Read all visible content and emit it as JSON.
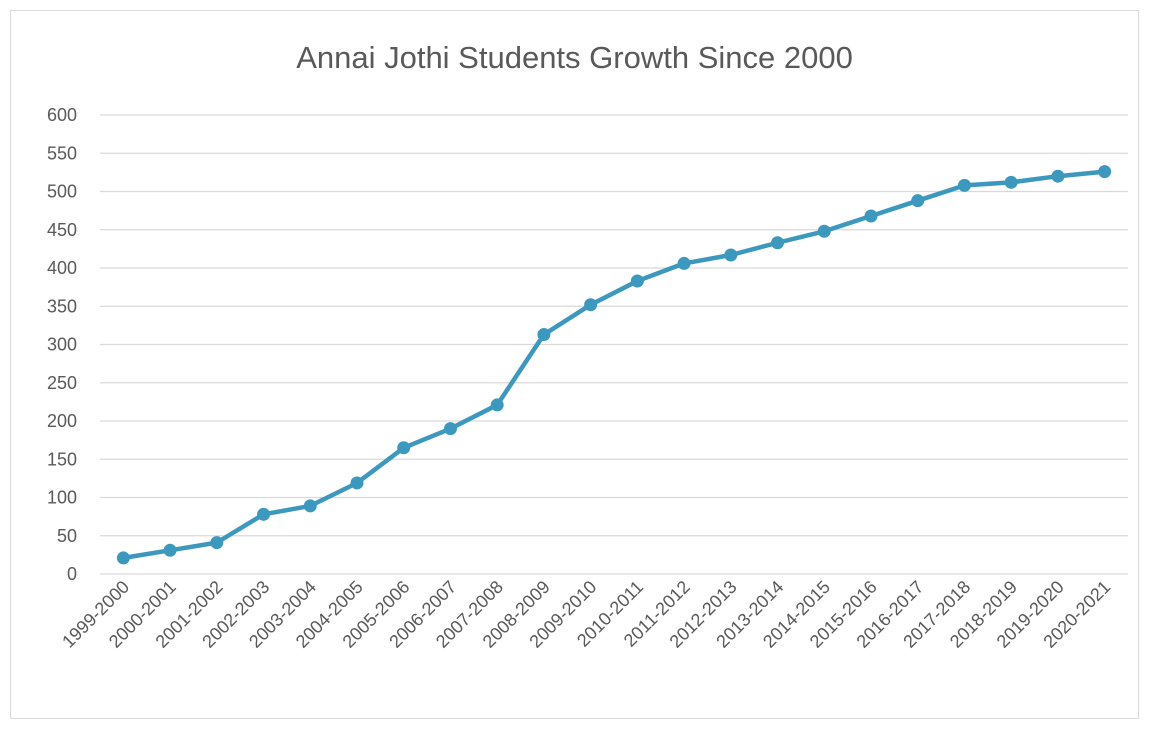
{
  "chart_data": {
    "type": "line",
    "title": "Annai Jothi Students Growth Since 2000",
    "xlabel": "",
    "ylabel": "",
    "ylim": [
      0,
      600
    ],
    "yticks": [
      0,
      50,
      100,
      150,
      200,
      250,
      300,
      350,
      400,
      450,
      500,
      550,
      600
    ],
    "grid": true,
    "legend": "none",
    "color": "#3d98bd",
    "categories": [
      "1999-2000",
      "2000-2001",
      "2001-2002",
      "2002-2003",
      "2003-2004",
      "2004-2005",
      "2005-2006",
      "2006-2007",
      "2007-2008",
      "2008-2009",
      "2009-2010",
      "2010-2011",
      "2011-2012",
      "2012-2013",
      "2013-2014",
      "2014-2015",
      "2015-2016",
      "2016-2017",
      "2017-2018",
      "2018-2019",
      "2019-2020",
      "2020-2021"
    ],
    "series": [
      {
        "values": [
          21,
          31,
          41,
          78,
          89,
          119,
          165,
          190,
          221,
          313,
          352,
          383,
          406,
          417,
          433,
          448,
          468,
          488,
          508,
          512,
          520,
          526
        ]
      }
    ]
  }
}
